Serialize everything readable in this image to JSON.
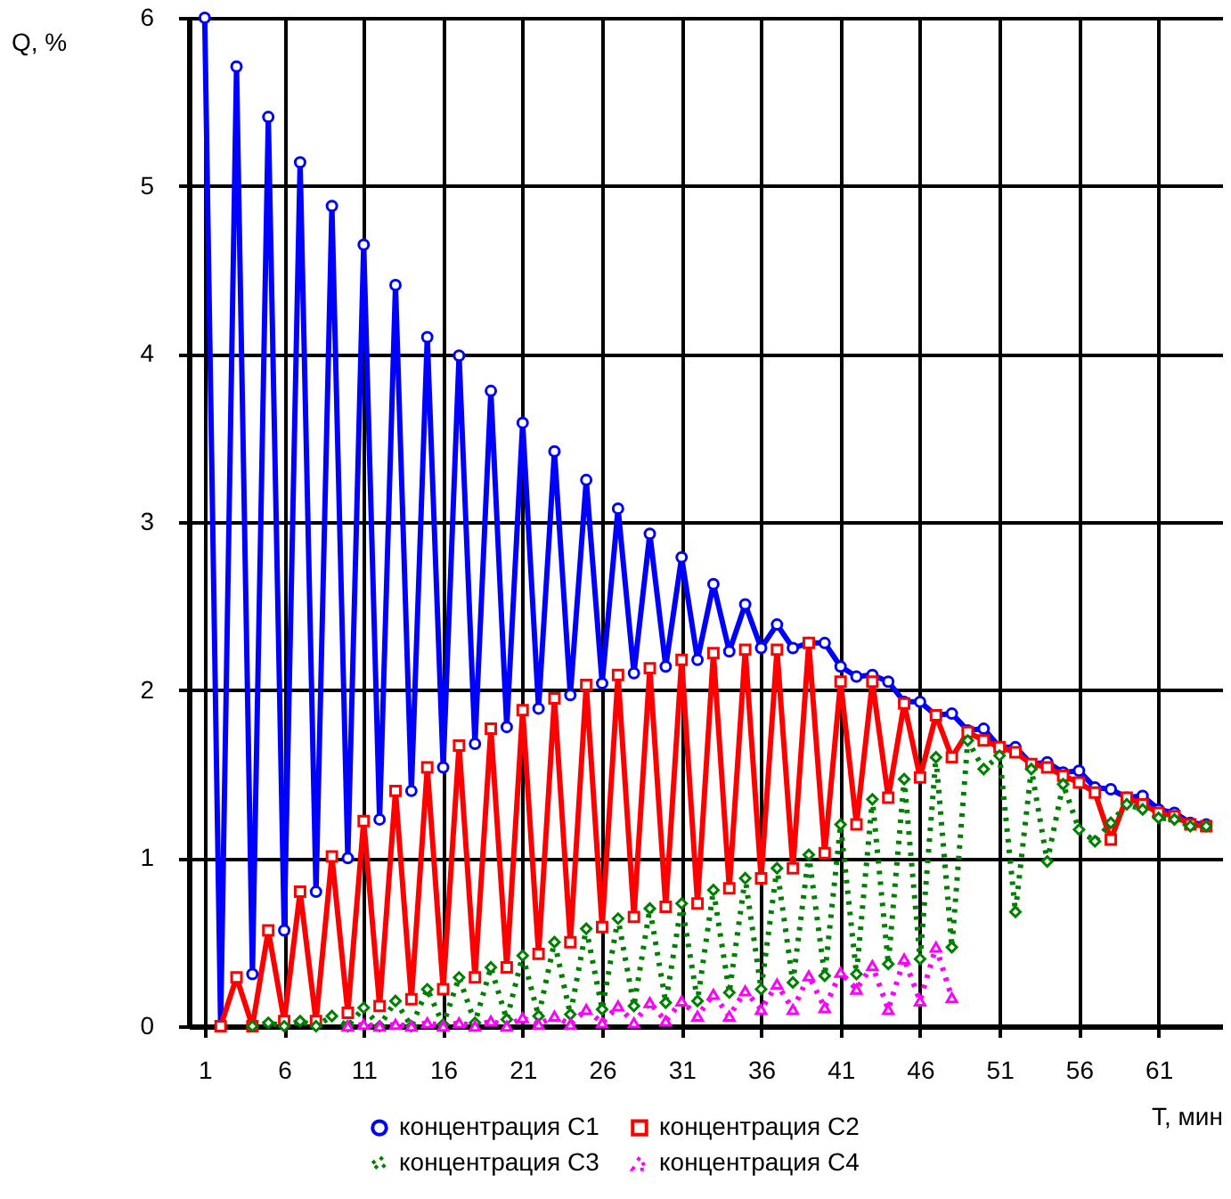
{
  "chart_data": {
    "type": "line",
    "xlabel": "T, мин",
    "ylabel": "Q, %",
    "x": [
      1,
      2,
      3,
      4,
      5,
      6,
      7,
      8,
      9,
      10,
      11,
      12,
      13,
      14,
      15,
      16,
      17,
      18,
      19,
      20,
      21,
      22,
      23,
      24,
      25,
      26,
      27,
      28,
      29,
      30,
      31,
      32,
      33,
      34,
      35,
      36,
      37,
      38,
      39,
      40,
      41,
      42,
      43,
      44,
      45,
      46,
      47,
      48,
      49,
      50,
      51,
      52,
      53,
      54,
      55,
      56,
      57,
      58,
      59,
      60,
      61,
      62,
      63,
      64
    ],
    "series": [
      {
        "name": "концентрация С1",
        "color": "#0000ff",
        "marker": "circle",
        "line_style": "solid",
        "values": [
          6.0,
          0,
          5.71,
          0.31,
          5.41,
          0.57,
          5.14,
          0.8,
          4.88,
          1.0,
          4.65,
          1.23,
          4.41,
          1.4,
          4.1,
          1.54,
          3.99,
          1.68,
          3.78,
          1.78,
          3.59,
          1.89,
          3.42,
          1.97,
          3.25,
          2.04,
          3.08,
          2.1,
          2.93,
          2.14,
          2.79,
          2.18,
          2.63,
          2.23,
          2.51,
          2.25,
          2.39,
          2.25,
          2.28,
          2.28,
          2.14,
          2.08,
          2.09,
          2.05,
          1.93,
          1.93,
          1.85,
          1.86,
          1.76,
          1.77,
          1.66,
          1.66,
          1.56,
          1.57,
          1.51,
          1.52,
          1.42,
          1.41,
          1.36,
          1.37,
          1.29,
          1.27,
          1.21,
          1.2
        ]
      },
      {
        "name": "концентрация С2",
        "color": "#ff0000",
        "marker": "square",
        "line_style": "solid",
        "values": [
          null,
          0,
          0.29,
          0,
          0.57,
          0.03,
          0.8,
          0.03,
          1.01,
          0.08,
          1.22,
          0.12,
          1.4,
          0.16,
          1.54,
          0.22,
          1.67,
          0.29,
          1.77,
          0.35,
          1.88,
          0.43,
          1.95,
          0.5,
          2.03,
          0.59,
          2.09,
          0.65,
          2.13,
          0.71,
          2.18,
          0.73,
          2.22,
          0.82,
          2.24,
          0.88,
          2.24,
          0.94,
          2.28,
          1.03,
          2.05,
          1.2,
          2.05,
          1.36,
          1.92,
          1.48,
          1.85,
          1.6,
          1.75,
          1.7,
          1.66,
          1.63,
          1.56,
          1.54,
          1.49,
          1.45,
          1.39,
          1.11,
          1.36,
          1.32,
          1.27,
          1.25,
          1.2,
          1.19
        ]
      },
      {
        "name": "концентрация С3",
        "color": "#008000",
        "marker": "diamond",
        "line_style": "dotted",
        "values": [
          null,
          null,
          null,
          0,
          0.02,
          0,
          0.03,
          0,
          0.06,
          0,
          0.11,
          0,
          0.15,
          0,
          0.22,
          0.01,
          0.29,
          0.02,
          0.35,
          0.04,
          0.42,
          0.06,
          0.5,
          0.07,
          0.58,
          0.1,
          0.64,
          0.12,
          0.7,
          0.14,
          0.73,
          0.15,
          0.81,
          0.2,
          0.88,
          0.22,
          0.94,
          0.26,
          1.02,
          0.3,
          1.2,
          0.31,
          1.35,
          0.37,
          1.47,
          0.4,
          1.6,
          0.47,
          1.7,
          1.53,
          1.61,
          0.68,
          1.53,
          0.98,
          1.44,
          1.17,
          1.1,
          1.21,
          1.32,
          1.29,
          1.24,
          1.23,
          1.19,
          1.19
        ]
      },
      {
        "name": "концентрация С4",
        "color": "#ff00ff",
        "marker": "triangle",
        "line_style": "dotted",
        "values": [
          null,
          null,
          null,
          null,
          null,
          null,
          null,
          null,
          null,
          0,
          0.01,
          0,
          0.01,
          0,
          0.02,
          0,
          0.02,
          0,
          0.03,
          0,
          0.05,
          0.01,
          0.06,
          0.01,
          0.1,
          0.02,
          0.12,
          0.02,
          0.14,
          0.03,
          0.15,
          0.06,
          0.19,
          0.06,
          0.21,
          0.1,
          0.25,
          0.1,
          0.3,
          0.11,
          0.32,
          0.22,
          0.36,
          0.1,
          0.4,
          0.15,
          0.47,
          0.17,
          null,
          null,
          null,
          null,
          null,
          null,
          null,
          null,
          null,
          null,
          null,
          null,
          null,
          null,
          null,
          null
        ]
      }
    ],
    "xlim": [
      0,
      65
    ],
    "xticks": [
      1,
      6,
      11,
      16,
      21,
      26,
      31,
      36,
      41,
      46,
      51,
      56,
      61
    ],
    "ylim": [
      0,
      6
    ],
    "yticks": [
      0,
      1,
      2,
      3,
      4,
      5,
      6
    ],
    "grid": true,
    "legend": "bottom"
  }
}
